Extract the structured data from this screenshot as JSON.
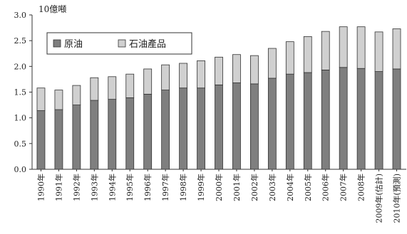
{
  "chart_data": {
    "type": "bar",
    "stacked": true,
    "ylabel": "10億噸",
    "ylim": [
      0,
      3.0
    ],
    "yticks": [
      "0.0",
      "0.5",
      "1.0",
      "1.5",
      "2.0",
      "2.5",
      "3.0"
    ],
    "categories": [
      "1990年",
      "1991年",
      "1992年",
      "1993年",
      "1994年",
      "1995年",
      "1996年",
      "1997年",
      "1998年",
      "1999年",
      "2000年",
      "2001年",
      "2002年",
      "2003年",
      "2004年",
      "2005年",
      "2006年",
      "2007年",
      "2008年",
      "2009年(估計)",
      "2010年(預測)"
    ],
    "series": [
      {
        "name": "原油",
        "color": "#7f7f7f",
        "values": [
          1.14,
          1.16,
          1.25,
          1.34,
          1.36,
          1.39,
          1.46,
          1.54,
          1.58,
          1.58,
          1.64,
          1.68,
          1.66,
          1.77,
          1.85,
          1.88,
          1.93,
          1.98,
          1.96,
          1.9,
          1.95
        ]
      },
      {
        "name": "石油產品",
        "color": "#d0d0d0",
        "values": [
          0.44,
          0.38,
          0.38,
          0.44,
          0.44,
          0.46,
          0.49,
          0.49,
          0.48,
          0.53,
          0.54,
          0.55,
          0.55,
          0.58,
          0.63,
          0.7,
          0.75,
          0.79,
          0.81,
          0.77,
          0.78
        ]
      }
    ],
    "legend": "top-left",
    "grid": false
  }
}
